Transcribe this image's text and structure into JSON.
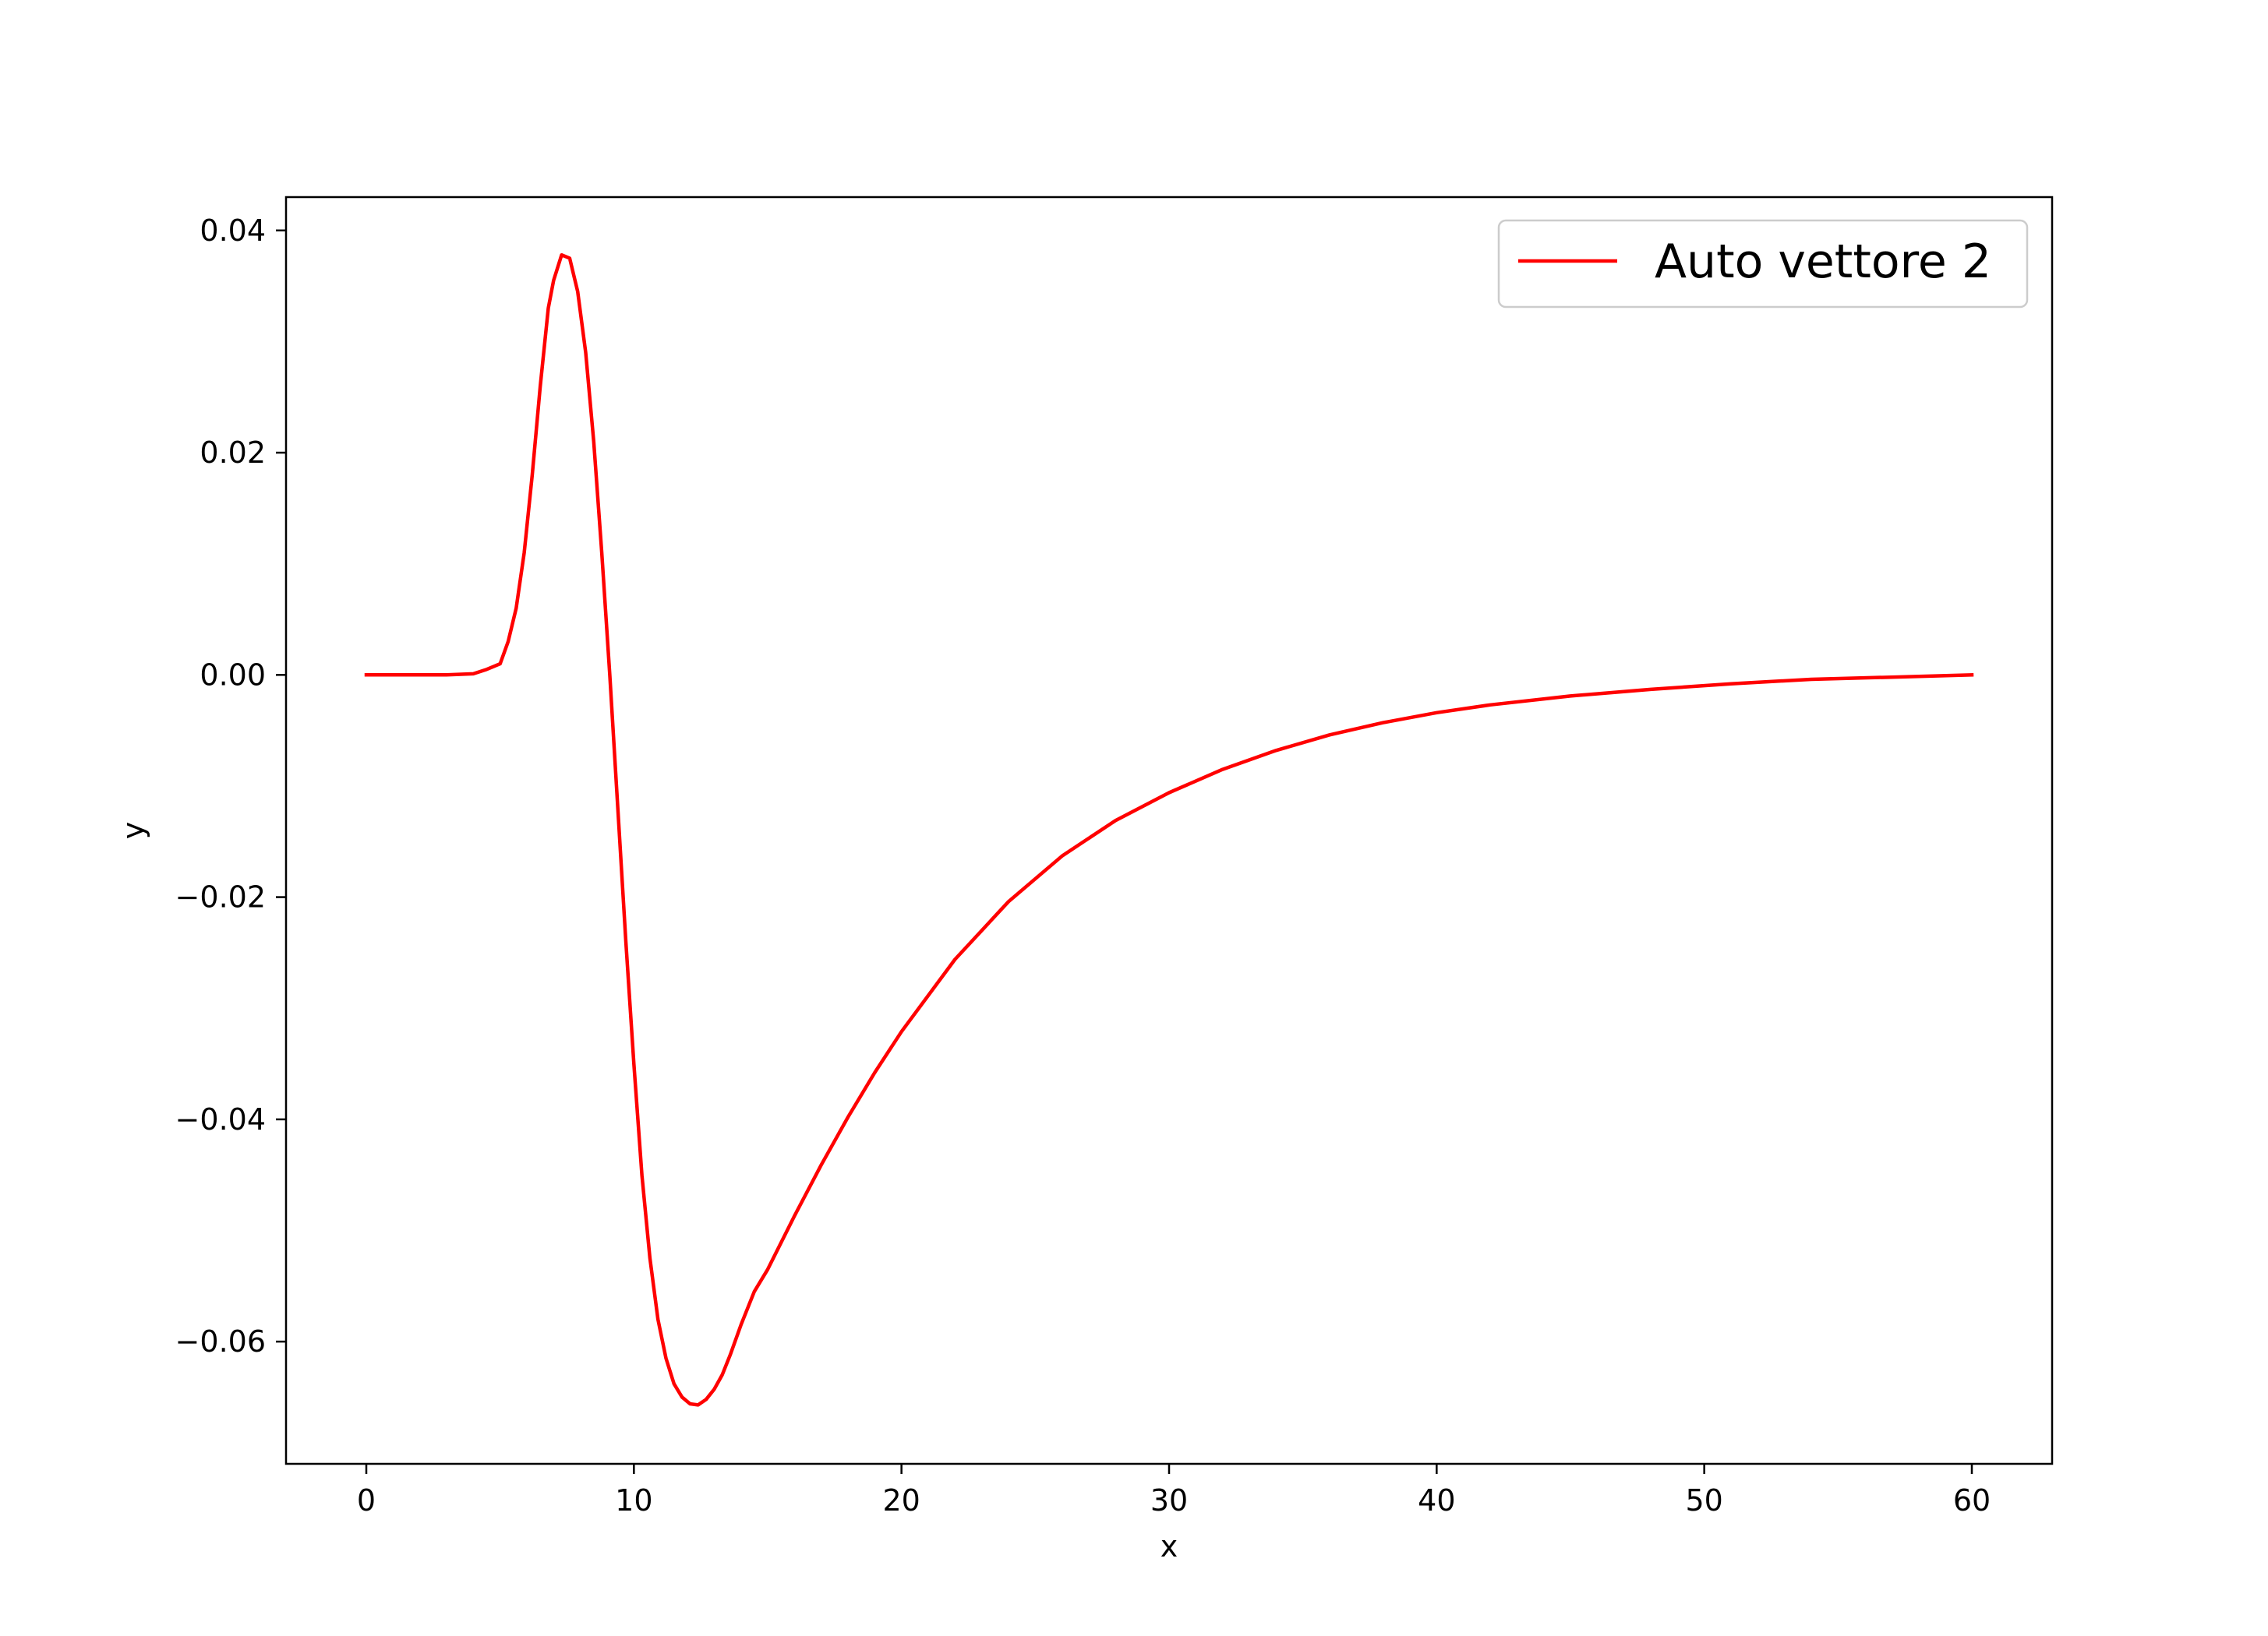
{
  "chart_data": {
    "type": "line",
    "xlabel": "x",
    "ylabel": "y",
    "xlim": [
      -3,
      63
    ],
    "ylim": [
      -0.071,
      0.043
    ],
    "x_ticks": [
      0,
      10,
      20,
      30,
      40,
      50,
      60
    ],
    "x_tick_labels": [
      "0",
      "10",
      "20",
      "30",
      "40",
      "50",
      "60"
    ],
    "y_ticks": [
      -0.06,
      -0.04,
      -0.02,
      0.0,
      0.02,
      0.04
    ],
    "y_tick_labels": [
      "−0.06",
      "−0.04",
      "−0.02",
      "0.00",
      "0.02",
      "0.04"
    ],
    "grid": false,
    "legend_position": "upper right",
    "series": [
      {
        "name": "Auto vettore 2",
        "color": "#ff0000",
        "x": [
          0,
          1,
          2,
          3,
          4,
          4.5,
          5,
          5.3,
          5.6,
          5.9,
          6.2,
          6.5,
          6.8,
          7.0,
          7.3,
          7.6,
          7.9,
          8.2,
          8.5,
          8.8,
          9.1,
          9.4,
          9.7,
          10.0,
          10.3,
          10.6,
          10.9,
          11.2,
          11.5,
          11.8,
          12.1,
          12.4,
          12.7,
          13.0,
          13.3,
          13.6,
          14.0,
          14.5,
          15,
          16,
          17,
          18,
          19,
          20,
          22,
          24,
          26,
          28,
          30,
          32,
          34,
          36,
          38,
          40,
          42,
          45,
          48,
          51,
          54,
          57,
          60
        ],
        "y": [
          0,
          0,
          0,
          0,
          0.0001,
          0.0005,
          0.001,
          0.003,
          0.006,
          0.011,
          0.018,
          0.026,
          0.033,
          0.0355,
          0.0378,
          0.0375,
          0.0345,
          0.029,
          0.021,
          0.011,
          0.0,
          -0.012,
          -0.024,
          -0.035,
          -0.045,
          -0.0525,
          -0.058,
          -0.0615,
          -0.0638,
          -0.065,
          -0.0656,
          -0.0657,
          -0.0652,
          -0.0643,
          -0.063,
          -0.0612,
          -0.0585,
          -0.0555,
          -0.0535,
          -0.0487,
          -0.0441,
          -0.0398,
          -0.0358,
          -0.0321,
          -0.0256,
          -0.0204,
          -0.0163,
          -0.0131,
          -0.0106,
          -0.0085,
          -0.0068,
          -0.0054,
          -0.0043,
          -0.0034,
          -0.0027,
          -0.0019,
          -0.0013,
          -0.0008,
          -0.0004,
          -0.0002,
          0.0
        ]
      }
    ]
  }
}
